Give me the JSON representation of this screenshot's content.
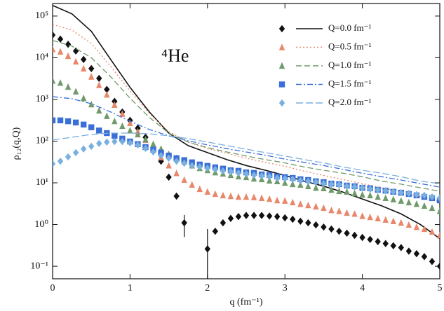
{
  "chart_data": {
    "type": "scatter",
    "annotation": "⁴He",
    "x_label": "q (fm⁻¹)",
    "y_label": "ρ₁₂(q,Q)",
    "log_y": true,
    "legend": "upper right",
    "xlim": [
      0,
      5
    ],
    "xticks": [
      0,
      1,
      2,
      3,
      4,
      5
    ],
    "ylim": [
      0.05,
      200000
    ],
    "yticks": [
      {
        "value": 0.1,
        "label": "10⁻¹"
      },
      {
        "value": 1,
        "label": "10⁰"
      },
      {
        "value": 10,
        "label": "10¹"
      },
      {
        "value": 100,
        "label": "10²"
      },
      {
        "value": 1000,
        "label": "10³"
      },
      {
        "value": 10000,
        "label": "10⁴"
      },
      {
        "value": 100000,
        "label": "10⁵"
      }
    ],
    "x": [
      0,
      0.1,
      0.2,
      0.3,
      0.4,
      0.5,
      0.6,
      0.7,
      0.8,
      0.9,
      1,
      1.1,
      1.2,
      1.3,
      1.4,
      1.5,
      1.6,
      1.7,
      1.8,
      1.9,
      2,
      2.1,
      2.2,
      2.3,
      2.4,
      2.5,
      2.6,
      2.7,
      2.8,
      2.9,
      3,
      3.1,
      3.2,
      3.3,
      3.4,
      3.5,
      3.6,
      3.7,
      3.8,
      3.9,
      4,
      4.1,
      4.2,
      4.3,
      4.4,
      4.5,
      4.6,
      4.7,
      4.8,
      4.9,
      5
    ],
    "curve_x": [
      0,
      0.25,
      0.5,
      0.75,
      1,
      1.25,
      1.5,
      1.75,
      2,
      2.25,
      2.5,
      2.75,
      3,
      3.25,
      3.5,
      3.75,
      4,
      4.25,
      4.5,
      4.75,
      5
    ],
    "series": [
      {
        "name": "Q=0.0 fm⁻¹",
        "color": "#111111",
        "marker": "diamond",
        "dash": "",
        "values": [
          35000,
          28000,
          21000,
          14500,
          9100,
          5500,
          3200,
          1740,
          900,
          500,
          315,
          205,
          124,
          72,
          33,
          13.7,
          4.8,
          1.1,
          null,
          null,
          0.26,
          0.69,
          1.1,
          1.4,
          1.55,
          1.65,
          1.65,
          1.65,
          1.6,
          1.55,
          1.45,
          1.34,
          1.2,
          1.1,
          0.98,
          0.87,
          0.78,
          0.69,
          0.62,
          0.55,
          0.49,
          0.44,
          0.39,
          0.35,
          0.31,
          0.28,
          0.23,
          0.2,
          0.17,
          0.13,
          0.1
        ],
        "errors": [
          null,
          null,
          null,
          null,
          null,
          null,
          null,
          null,
          null,
          null,
          null,
          null,
          null,
          null,
          null,
          null,
          null,
          0.6,
          null,
          null,
          0.52,
          null,
          null,
          null,
          null,
          null,
          null,
          null,
          null,
          null,
          null,
          null,
          null,
          null,
          null,
          null,
          null,
          null,
          null,
          null,
          null,
          null,
          null,
          null,
          null,
          null,
          null,
          null,
          null,
          null,
          null
        ],
        "curve": [
          180000,
          113000,
          43000,
          9100,
          1950,
          500,
          156,
          78,
          53,
          36,
          26,
          20,
          15,
          11,
          8.3,
          6,
          4.1,
          2.8,
          1.8,
          1,
          0.46
        ]
      },
      {
        "name": "Q=0.5 fm⁻¹",
        "color": "#e8876a",
        "marker": "triangle",
        "dash": "2 3",
        "values": [
          16000,
          14000,
          11000,
          8100,
          5500,
          3500,
          2200,
          1300,
          740,
          450,
          270,
          170,
          107,
          67,
          41,
          26,
          17,
          11.7,
          9,
          7.1,
          6.1,
          5.4,
          5,
          4.8,
          4.6,
          4.6,
          4.5,
          4.3,
          4.1,
          3.8,
          3.7,
          3.4,
          3.1,
          2.9,
          2.7,
          2.5,
          2.2,
          2.1,
          1.9,
          1.8,
          1.6,
          1.5,
          1.4,
          1.3,
          1.2,
          1.1,
          0.98,
          0.87,
          0.78,
          0.67,
          0.55
        ],
        "curve": [
          63000,
          46000,
          22000,
          6200,
          1600,
          460,
          170,
          95,
          67,
          51,
          39,
          31,
          25,
          19,
          15,
          12,
          9.6,
          7.6,
          6.1,
          4.6,
          3.5
        ]
      },
      {
        "name": "Q=1.0 fm⁻¹",
        "color": "#6f9a6a",
        "marker": "triangle",
        "dash": "8 4",
        "values": [
          2800,
          2500,
          2000,
          1550,
          1070,
          760,
          540,
          400,
          300,
          230,
          180,
          145,
          110,
          85,
          65,
          49,
          39,
          32,
          26,
          22.5,
          20,
          17.8,
          16.6,
          15.4,
          14.2,
          13.7,
          12.6,
          12.2,
          11.3,
          10.9,
          10,
          9.3,
          9,
          8.3,
          7.6,
          7.4,
          6.8,
          6.3,
          6.1,
          5.6,
          5.2,
          5,
          4.6,
          4.3,
          4,
          3.7,
          3.4,
          3.1,
          2.8,
          2.5,
          2.1
        ],
        "curve": [
          26000,
          19000,
          10000,
          3500,
          1070,
          370,
          156,
          95,
          70,
          55,
          44,
          36,
          30,
          24,
          20,
          17,
          14,
          11,
          9.3,
          7.6,
          6.3
        ]
      },
      {
        "name": "Q=1.5 fm⁻¹",
        "color": "#3a6fd8",
        "marker": "square",
        "dash": "8 3 2 3",
        "values": [
          315,
          315,
          300,
          280,
          250,
          215,
          180,
          156,
          134,
          115,
          98,
          85,
          72,
          62,
          53,
          45,
          39,
          35,
          31,
          27.5,
          25.5,
          23.5,
          21.9,
          20,
          19.4,
          17.8,
          17.3,
          15.9,
          15.4,
          14.2,
          13.7,
          13.1,
          12.2,
          11.7,
          10.9,
          10.4,
          9.6,
          9.3,
          8.6,
          8.3,
          7.6,
          7.4,
          6.8,
          6.5,
          6.1,
          5.8,
          5.4,
          5,
          4.6,
          4.3,
          3.8
        ],
        "curve": [
          1170,
          1040,
          790,
          500,
          300,
          190,
          134,
          102,
          81,
          66,
          55,
          46,
          37,
          31,
          26,
          21,
          17,
          14,
          11.7,
          9.6,
          7.9
        ]
      },
      {
        "name": "Q=2.0 fm⁻¹",
        "color": "#7ab0e0",
        "marker": "diamond",
        "dash": "10 4",
        "values": [
          28.6,
          33,
          42,
          53,
          65,
          75,
          88,
          95,
          98,
          98,
          91,
          81,
          67,
          55,
          45,
          39,
          33,
          29.5,
          26,
          24.3,
          22.5,
          21,
          19.4,
          18.7,
          17.3,
          16.6,
          15.4,
          14.8,
          14.2,
          13.1,
          12.6,
          12.2,
          11.3,
          10.9,
          10.4,
          9.6,
          9.3,
          9,
          8.3,
          8,
          7.6,
          7.1,
          6.8,
          6.5,
          6.1,
          5.8,
          5.6,
          5.2,
          5,
          4.6,
          4.3
        ],
        "curve": [
          107,
          124,
          145,
          156,
          156,
          150,
          134,
          115,
          95,
          78,
          64,
          53,
          44,
          36,
          30,
          24,
          20,
          17,
          14,
          11,
          9.6
        ]
      }
    ]
  }
}
